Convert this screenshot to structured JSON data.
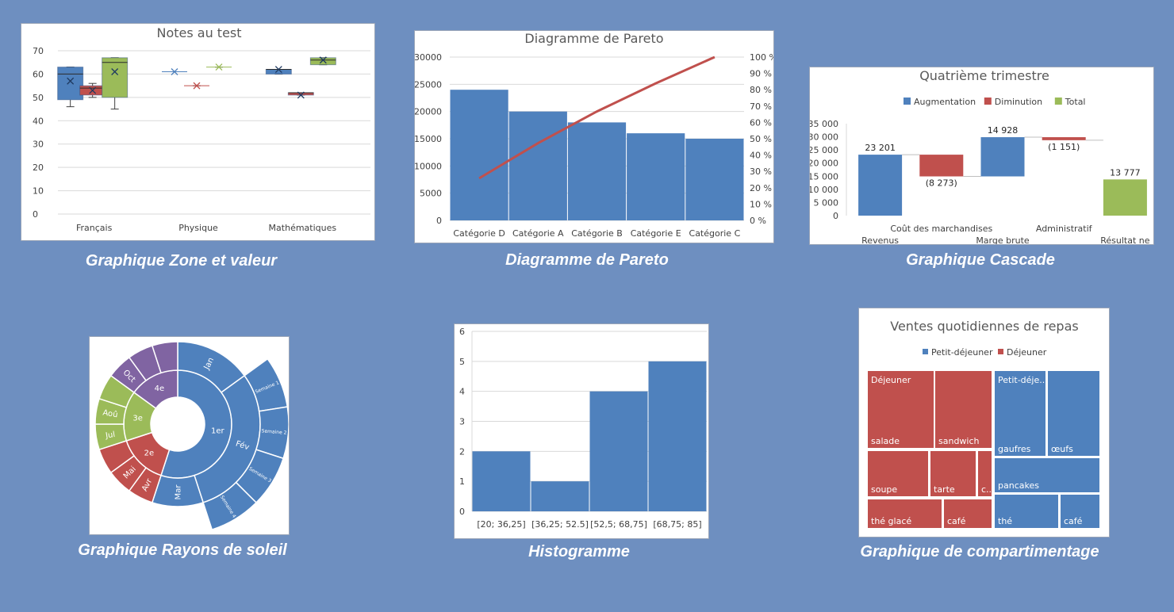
{
  "captions": {
    "boxplot": "Graphique Zone et valeur",
    "pareto": "Diagramme de Pareto",
    "waterfall": "Graphique Cascade",
    "sunburst": "Graphique Rayons de soleil",
    "histogram": "Histogramme",
    "treemap": "Graphique de compartimentage"
  },
  "colors": {
    "background": "#6e8fc0",
    "blue": "#4f81bd",
    "red": "#c0504d",
    "green": "#9bbb59",
    "purple": "#8064a2"
  },
  "chart_data": [
    {
      "id": "boxplot",
      "type": "box",
      "title": "Notes au test",
      "categories": [
        "Français",
        "Physique",
        "Mathématiques"
      ],
      "ylim": [
        0,
        70
      ],
      "yticks": [
        "0",
        "10",
        "20",
        "30",
        "40",
        "50",
        "60",
        "70"
      ],
      "grid": true,
      "series": [
        {
          "color": "#4f81bd",
          "boxes": [
            {
              "min": 46,
              "q1": 49,
              "median": 60,
              "q3": 63,
              "max": 63,
              "mean": 57
            },
            {
              "min": 61,
              "q1": 61,
              "median": 61,
              "q3": 61,
              "max": 61,
              "mean": 61
            },
            {
              "min": 60,
              "q1": 60,
              "median": 62,
              "q3": 62,
              "max": 62,
              "mean": 62
            }
          ]
        },
        {
          "color": "#c0504d",
          "boxes": [
            {
              "min": 50,
              "q1": 51,
              "median": 54,
              "q3": 55,
              "max": 56,
              "mean": 53
            },
            {
              "min": 55,
              "q1": 55,
              "median": 55,
              "q3": 55,
              "max": 55,
              "mean": 55
            },
            {
              "min": 51,
              "q1": 51,
              "median": 52,
              "q3": 52,
              "max": 52,
              "mean": 51
            }
          ]
        },
        {
          "color": "#9bbb59",
          "boxes": [
            {
              "min": 45,
              "q1": 50,
              "median": 65,
              "q3": 67,
              "max": 67,
              "mean": 61
            },
            {
              "min": 63,
              "q1": 63,
              "median": 63,
              "q3": 63,
              "max": 63,
              "mean": 63
            },
            {
              "min": 64,
              "q1": 64,
              "median": 66,
              "q3": 67,
              "max": 67,
              "mean": 66
            }
          ]
        }
      ]
    },
    {
      "id": "pareto",
      "type": "bar",
      "title": "Diagramme de Pareto",
      "categories": [
        "Catégorie D",
        "Catégorie A",
        "Catégorie B",
        "Catégorie E",
        "Catégorie C"
      ],
      "values": [
        24000,
        20000,
        18000,
        16000,
        15000
      ],
      "cumulative_percent": [
        25.8,
        47.3,
        66.7,
        83.9,
        100
      ],
      "ylim": [
        0,
        30000
      ],
      "yticks": [
        "0",
        "5000",
        "10000",
        "15000",
        "20000",
        "25000",
        "30000"
      ],
      "y2ticks": [
        "0 %",
        "10 %",
        "20 %",
        "30 %",
        "40 %",
        "50 %",
        "60 %",
        "70 %",
        "80 %",
        "90 %",
        "100 %"
      ],
      "grid": true
    },
    {
      "id": "waterfall",
      "type": "waterfall",
      "title": "Quatrième trimestre",
      "legend": [
        "Augmentation",
        "Diminution",
        "Total"
      ],
      "legend_position": "top",
      "ylim": [
        0,
        35000
      ],
      "yticks": [
        "0",
        "5 000",
        "10 000",
        "15 000",
        "20 000",
        "25 000",
        "30 000",
        "35 000"
      ],
      "steps": [
        {
          "label": "Revenus",
          "value": 23201,
          "kind": "increase",
          "data_label": "23 201"
        },
        {
          "label": "Coût des marchandises",
          "value": -8273,
          "kind": "decrease",
          "data_label": "(8 273)"
        },
        {
          "label": "Marge brute",
          "value": 14928,
          "kind": "increase",
          "data_label": "14 928"
        },
        {
          "label": "Administratif",
          "value": -1151,
          "kind": "decrease",
          "data_label": "(1 151)"
        },
        {
          "label": "Résultat ne",
          "value": 13777,
          "kind": "total",
          "data_label": "13 777"
        }
      ]
    },
    {
      "id": "sunburst",
      "type": "sunburst",
      "rings": [
        [
          {
            "label": "1er",
            "value": 11,
            "color": "#4f81bd"
          },
          {
            "label": "2e",
            "value": 3,
            "color": "#c0504d"
          },
          {
            "label": "3e",
            "value": 3,
            "color": "#9bbb59"
          },
          {
            "label": "4e",
            "value": 3,
            "color": "#8064a2"
          }
        ],
        [
          {
            "label": "Jan",
            "value": 3,
            "color": "#4f81bd"
          },
          {
            "label": "Fév",
            "value": 6,
            "color": "#4f81bd"
          },
          {
            "label": "Mar",
            "value": 2,
            "color": "#4f81bd"
          },
          {
            "label": "Avr",
            "value": 1,
            "color": "#c0504d"
          },
          {
            "label": "Mai",
            "value": 1,
            "color": "#c0504d"
          },
          {
            "label": "",
            "value": 1,
            "color": "#c0504d"
          },
          {
            "label": "Jul",
            "value": 1,
            "color": "#9bbb59"
          },
          {
            "label": "Aoû",
            "value": 1,
            "color": "#9bbb59"
          },
          {
            "label": "",
            "value": 1,
            "color": "#9bbb59"
          },
          {
            "label": "Oct",
            "value": 1,
            "color": "#8064a2"
          },
          {
            "label": "",
            "value": 1,
            "color": "#8064a2"
          },
          {
            "label": "",
            "value": 1,
            "color": "#8064a2"
          }
        ],
        [
          {
            "label": "",
            "value": 3,
            "color": null
          },
          {
            "label": "Semaine 1",
            "value": 1.5,
            "color": "#4f81bd"
          },
          {
            "label": "Semaine 2",
            "value": 1.5,
            "color": "#4f81bd"
          },
          {
            "label": "Semaine 3",
            "value": 1.5,
            "color": "#4f81bd"
          },
          {
            "label": "Semaine 4",
            "value": 1.5,
            "color": "#4f81bd"
          },
          {
            "label": "",
            "value": 11,
            "color": null
          }
        ]
      ]
    },
    {
      "id": "histogram",
      "type": "bar",
      "categories": [
        "[20; 36,25]",
        "[36,25; 52.5]",
        "[52,5; 68,75]",
        "[68,75; 85]"
      ],
      "values": [
        2,
        1,
        4,
        5
      ],
      "ylim": [
        0,
        6
      ],
      "yticks": [
        "0",
        "1",
        "2",
        "3",
        "4",
        "5",
        "6"
      ],
      "grid": true
    },
    {
      "id": "treemap",
      "type": "treemap",
      "title": "Ventes quotidiennes de repas",
      "legend": [
        "Petit-déjeuner",
        "Déjeuner"
      ],
      "legend_position": "top",
      "groups": [
        {
          "name": "Déjeuner",
          "color": "#c0504d",
          "items": [
            {
              "label": "salade"
            },
            {
              "label": "sandwich"
            },
            {
              "label": "soupe"
            },
            {
              "label": "tarte"
            },
            {
              "label": "c..."
            },
            {
              "label": "thé glacé"
            },
            {
              "label": "café"
            }
          ]
        },
        {
          "name": "Petit-déje...",
          "color": "#4f81bd",
          "items": [
            {
              "label": "gaufres"
            },
            {
              "label": "œufs"
            },
            {
              "label": "pancakes"
            },
            {
              "label": "thé"
            },
            {
              "label": "café"
            }
          ]
        }
      ]
    }
  ]
}
